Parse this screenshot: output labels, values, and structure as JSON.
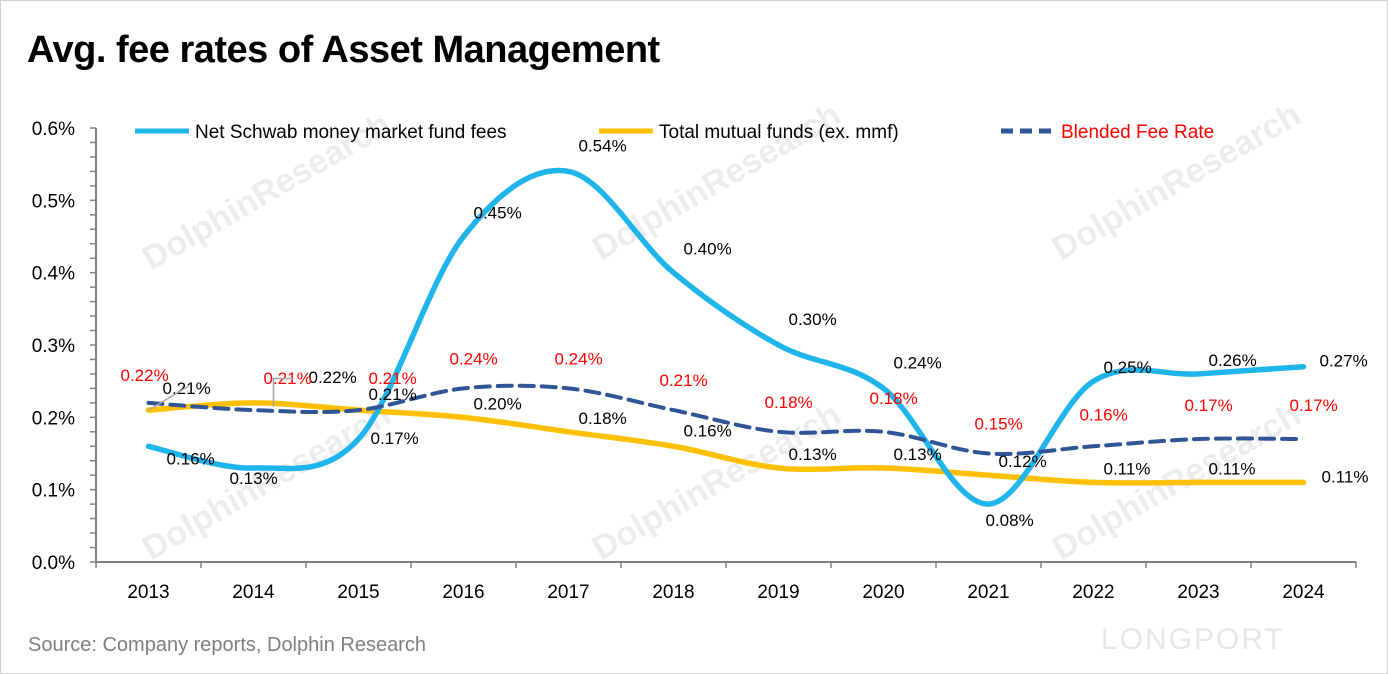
{
  "title": "Avg. fee rates of Asset Management",
  "source": "Source: Company reports, Dolphin Research",
  "logo_text": "LONGPORT",
  "watermark": "海豚投研 DolphinResearch",
  "chart_data": {
    "type": "line",
    "title": "Avg. fee rates of Asset Management",
    "xlabel": "",
    "ylabel": "",
    "categories": [
      "2013",
      "2014",
      "2015",
      "2016",
      "2017",
      "2018",
      "2019",
      "2020",
      "2021",
      "2022",
      "2023",
      "2024"
    ],
    "ylim": [
      0,
      0.6
    ],
    "yticks": [
      "0.0%",
      "0.1%",
      "0.2%",
      "0.3%",
      "0.4%",
      "0.5%",
      "0.6%"
    ],
    "grid": false,
    "legend_position": "top",
    "series": [
      {
        "name": "Net Schwab money market fund fees",
        "color": "#1fb5ea",
        "style": "solid",
        "label_color": "#000000",
        "values": [
          0.16,
          0.13,
          0.17,
          0.45,
          0.54,
          0.4,
          0.3,
          0.24,
          0.08,
          0.25,
          0.26,
          0.27
        ],
        "labels": [
          "0.16%",
          "0.13%",
          "0.17%",
          "0.45%",
          "0.54%",
          "0.40%",
          "0.30%",
          "0.24%",
          "0.08%",
          "0.25%",
          "0.26%",
          "0.27%"
        ]
      },
      {
        "name": "Total mutual funds  (ex. mmf)",
        "color": "#ffc000",
        "style": "solid",
        "label_color": "#000000",
        "values": [
          0.21,
          0.22,
          0.21,
          0.2,
          0.18,
          0.16,
          0.13,
          0.13,
          0.12,
          0.11,
          0.11,
          0.11
        ],
        "labels": [
          "0.21%",
          "0.22%",
          "0.21%",
          "0.20%",
          "0.18%",
          "0.16%",
          "0.13%",
          "0.13%",
          "0.12%",
          "0.11%",
          "0.11%",
          "0.11%"
        ]
      },
      {
        "name": "Blended Fee Rate",
        "color": "#2f5597",
        "style": "dashed",
        "label_color": "#ff0000",
        "values": [
          0.22,
          0.21,
          0.21,
          0.24,
          0.24,
          0.21,
          0.18,
          0.18,
          0.15,
          0.16,
          0.17,
          0.17
        ],
        "labels": [
          "0.22%",
          "0.21%",
          "0.21%",
          "0.24%",
          "0.24%",
          "0.21%",
          "0.18%",
          "0.18%",
          "0.15%",
          "0.16%",
          "0.17%",
          "0.17%"
        ]
      }
    ]
  }
}
